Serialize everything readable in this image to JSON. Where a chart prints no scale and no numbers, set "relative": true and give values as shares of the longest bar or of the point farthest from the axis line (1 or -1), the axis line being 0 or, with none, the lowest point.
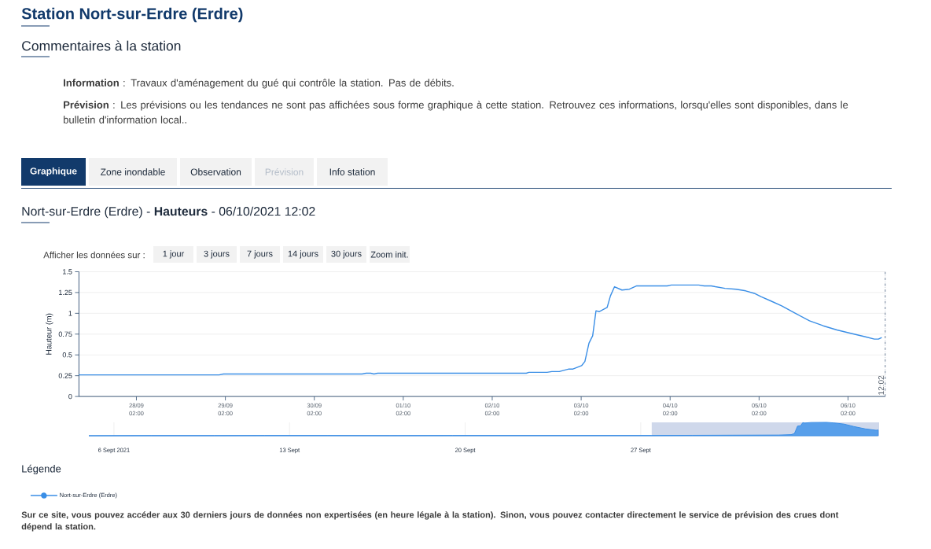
{
  "chart_data": [
    {
      "type": "line",
      "title": "Station Nort-sur-Erdre (Erdre)",
      "subtitle": "Nort-sur-Erdre (Erdre) - **Hauteurs** - 06/10/2021 12:02",
      "ylabel": "Hauteur (m)",
      "legend_title": "Légende",
      "legend": "bottom left",
      "grid": "y",
      "x": [
        "2021-09-27T10:30",
        "2021-09-29T00:18",
        "2021-09-29T01:30",
        "2021-09-30T14:54",
        "2021-09-30T16:00",
        "2021-09-30T17:12",
        "2021-09-30T18:06",
        "2021-09-30T19:06",
        "2021-10-02T11:12",
        "2021-10-02T11:54",
        "2021-10-02T16:48",
        "2021-10-02T18:06",
        "2021-10-02T20:06",
        "2021-10-02T22:42",
        "2021-10-02T23:48",
        "2021-10-03T02:06",
        "2021-10-03T03:00",
        "2021-10-03T04:06",
        "2021-10-03T05:06",
        "2021-10-03T06:00",
        "2021-10-03T06:54",
        "2021-10-03T09:00",
        "2021-10-03T09:54",
        "2021-10-03T11:00",
        "2021-10-03T13:00",
        "2021-10-03T15:00",
        "2021-10-03T17:00",
        "2021-10-03T18:48",
        "2021-10-04T01:12",
        "2021-10-04T02:18",
        "2021-10-04T09:42",
        "2021-10-04T11:12",
        "2021-10-04T13:06",
        "2021-10-04T14:12",
        "2021-10-04T16:48",
        "2021-10-04T19:48",
        "2021-10-04T22:24",
        "2021-10-05T00:42",
        "2021-10-05T02:30",
        "2021-10-05T05:06",
        "2021-10-05T08:06",
        "2021-10-05T11:48",
        "2021-10-05T15:36",
        "2021-10-05T19:18",
        "2021-10-05T23:00",
        "2021-10-06T02:42",
        "2021-10-06T06:30",
        "2021-10-06T09:06",
        "2021-10-06T10:12",
        "2021-10-06T11:06"
      ],
      "series": [
        {
          "name": "Nort-sur-Erdre (Erdre)",
          "color": "#3a8ee6",
          "values": [
            0.26,
            0.26,
            0.27,
            0.27,
            0.28,
            0.28,
            0.27,
            0.28,
            0.28,
            0.29,
            0.29,
            0.3,
            0.3,
            0.33,
            0.33,
            0.37,
            0.42,
            0.64,
            0.73,
            1.03,
            1.02,
            1.07,
            1.21,
            1.32,
            1.28,
            1.29,
            1.33,
            1.33,
            1.33,
            1.34,
            1.34,
            1.33,
            1.33,
            1.32,
            1.3,
            1.29,
            1.27,
            1.24,
            1.2,
            1.15,
            1.09,
            1.0,
            0.91,
            0.85,
            0.8,
            0.76,
            0.72,
            0.69,
            0.69,
            0.71
          ]
        }
      ],
      "xlim": [
        "2021-09-27T10:30",
        "2021-10-06T12:02"
      ],
      "xticks": [
        {
          "value": "2021-09-28T02:00",
          "label": "28/09 02:00"
        },
        {
          "value": "2021-09-29T02:00",
          "label": "29/09 02:00"
        },
        {
          "value": "2021-09-30T02:00",
          "label": "30/09 02:00"
        },
        {
          "value": "2021-10-01T02:00",
          "label": "01/10 02:00"
        },
        {
          "value": "2021-10-02T02:00",
          "label": "02/10 02:00"
        },
        {
          "value": "2021-10-03T02:00",
          "label": "03/10 02:00"
        },
        {
          "value": "2021-10-04T02:00",
          "label": "04/10 02:00"
        },
        {
          "value": "2021-10-05T02:00",
          "label": "05/10 02:00"
        },
        {
          "value": "2021-10-06T02:00",
          "label": "06/10 02:00"
        }
      ],
      "ylim": [
        0,
        1.5
      ],
      "yticks": [
        0,
        0.25,
        0.5,
        0.75,
        1,
        1.25,
        1.5
      ],
      "ref_lines": [
        {
          "axis": "x",
          "value": "2021-10-06T12:02",
          "label": "12:02",
          "color": "#5a6f8a",
          "line_style": "dashdot"
        }
      ],
      "annotations": [
        "Commentaires à la station",
        "**Information** : Travaux d'aménagement du gué qui contrôle la station. Pas de débits.",
        "**Prévision** : Les prévisions ou les tendances ne sont pas affichées sous forme graphique à cette station. Retrouvez ces informations, lorsqu'elles sont disponibles, dans le bulletin d'information local..",
        "Graphique",
        "Zone inondable",
        "Observation",
        "Prévision",
        "Info station",
        "Afficher les données sur :",
        "1 jour",
        "3 jours",
        "7 jours",
        "14 jours",
        "30 jours",
        "Zoom init.",
        "Sur ce site, vous pouvez accéder aux 30 derniers jours de données non expertisées (en heure légale à la station). Sinon, vous pouvez contacter directement le service de prévision des crues dont dépend la station."
      ]
    },
    {
      "type": "area",
      "relative": true,
      "grid": "x",
      "color": "#3a8ee6",
      "x": [
        "2021-09-05T00:00",
        "2021-09-07T12:00",
        "2021-09-10T00:00",
        "2021-09-12T00:00",
        "2021-09-14T12:00",
        "2021-09-17T00:00",
        "2021-09-19T12:00",
        "2021-09-22T00:00",
        "2021-09-24T12:00",
        "2021-09-27T10:30",
        "2021-09-29T01:30",
        "2021-09-30T16:00",
        "2021-10-02T11:54",
        "2021-10-02T23:48",
        "2021-10-03T03:00",
        "2021-10-03T04:06",
        "2021-10-03T06:00",
        "2021-10-03T09:00",
        "2021-10-03T11:00",
        "2021-10-03T13:00",
        "2021-10-03T18:48",
        "2021-10-04T09:42",
        "2021-10-04T16:48",
        "2021-10-05T02:30",
        "2021-10-05T11:48",
        "2021-10-05T23:00",
        "2021-10-06T09:06",
        "2021-10-06T11:06"
      ],
      "values": [
        0,
        0.01,
        0.01,
        0.02,
        0.02,
        0.01,
        0.02,
        0.02,
        0.02,
        0.02,
        0.03,
        0.04,
        0.05,
        0.08,
        0.16,
        0.36,
        0.72,
        0.75,
        0.98,
        0.95,
        0.99,
        1,
        0.96,
        0.87,
        0.69,
        0.51,
        0.41,
        0.43
      ],
      "xlim": [
        "2021-09-05T00:00",
        "2021-10-06T12:02"
      ],
      "xticks": [
        {
          "value": "2021-09-06",
          "label": "6 Sept 2021"
        },
        {
          "value": "2021-09-13",
          "label": "13 Sept"
        },
        {
          "value": "2021-09-20",
          "label": "20 Sept"
        },
        {
          "value": "2021-09-27",
          "label": "27 Sept"
        }
      ],
      "bands": [
        {
          "axis": "x",
          "from": "2021-09-27T10:30",
          "to": "2021-10-06T12:02",
          "color": "#cfd8eb"
        }
      ]
    }
  ]
}
